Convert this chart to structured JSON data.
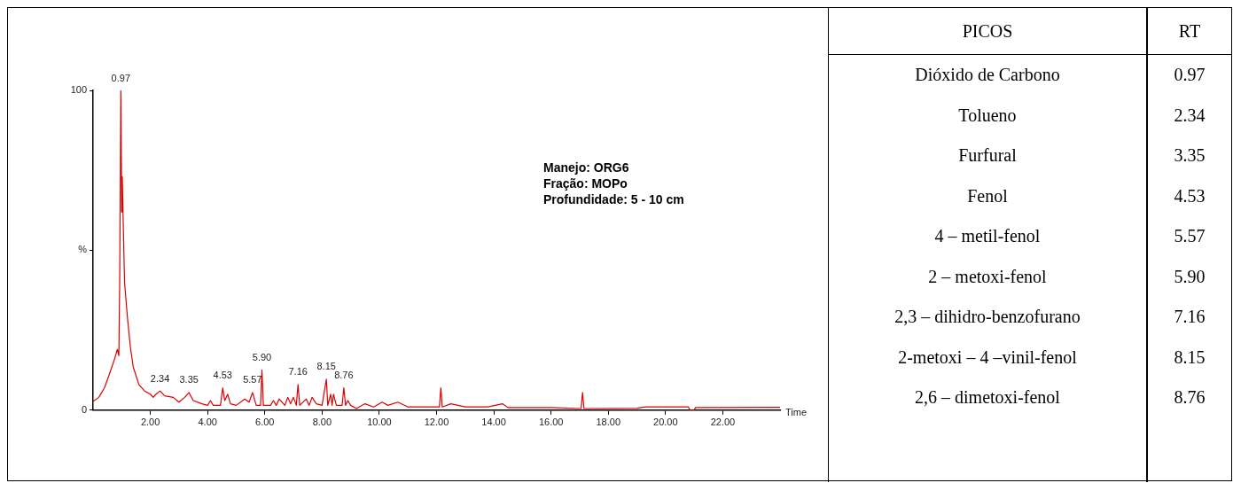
{
  "chart_data": [
    {
      "type": "line",
      "xlabel": "Time",
      "x": [
        0,
        0.2,
        0.4,
        0.6,
        0.75,
        0.85,
        0.9,
        0.93,
        0.97,
        1.0,
        1.02,
        1.05,
        1.1,
        1.2,
        1.3,
        1.4,
        1.6,
        1.8,
        2.0,
        2.1,
        2.2,
        2.34,
        2.5,
        2.8,
        3.0,
        3.2,
        3.35,
        3.5,
        3.8,
        4.0,
        4.1,
        4.2,
        4.45,
        4.53,
        4.6,
        4.7,
        4.8,
        5.0,
        5.3,
        5.45,
        5.57,
        5.7,
        5.85,
        5.9,
        5.95,
        6.2,
        6.3,
        6.4,
        6.5,
        6.7,
        6.8,
        6.9,
        7.0,
        7.1,
        7.16,
        7.22,
        7.45,
        7.55,
        7.65,
        7.8,
        8.0,
        8.15,
        8.2,
        8.3,
        8.35,
        8.4,
        8.5,
        8.7,
        8.76,
        8.82,
        8.9,
        9.0,
        9.2,
        9.5,
        9.8,
        10.1,
        10.3,
        10.65,
        11.0,
        11.5,
        12.1,
        12.15,
        12.2,
        12.5,
        13.0,
        13.8,
        14.3,
        14.5,
        16.0,
        17.05,
        17.1,
        17.15,
        19.0,
        19.3,
        20.8,
        20.85,
        21.0,
        21.05,
        24.0
      ],
      "series": [
        {
          "color": "#dd0000",
          "values": [
            2.7,
            4,
            7,
            12,
            16,
            19,
            17,
            40,
            100,
            62,
            73,
            60,
            40,
            29,
            20,
            13.6,
            8,
            6,
            5,
            4,
            5,
            6,
            4.5,
            4,
            2.5,
            4,
            5.5,
            3,
            2,
            1.5,
            3,
            1.5,
            1.5,
            7,
            3,
            5,
            2,
            1.5,
            3.5,
            2.5,
            5.5,
            1.5,
            1.5,
            12.5,
            1.5,
            1.5,
            3,
            1.5,
            3.5,
            1.5,
            4,
            2,
            4,
            1.5,
            8,
            1.5,
            3.5,
            1.5,
            4,
            2,
            1.5,
            9.7,
            1.5,
            5,
            1.5,
            5,
            1.5,
            1.5,
            7,
            1.5,
            3,
            1.5,
            0.5,
            2,
            1,
            2.5,
            1.5,
            2.5,
            1,
            1,
            1,
            7,
            1,
            2,
            1,
            1,
            2,
            0.8,
            0.8,
            0.5,
            5.5,
            0.5,
            0.6,
            1,
            1,
            0,
            0,
            0.8,
            0.9
          ]
        }
      ],
      "xlim": [
        0,
        24
      ],
      "xticks": [
        {
          "value": 2,
          "label": "2.00"
        },
        {
          "value": 4,
          "label": "4.00"
        },
        {
          "value": 6,
          "label": "6.00"
        },
        {
          "value": 8,
          "label": "8.00"
        },
        {
          "value": 10,
          "label": "10.00"
        },
        {
          "value": 12,
          "label": "12.00"
        },
        {
          "value": 14,
          "label": "14.00"
        },
        {
          "value": 16,
          "label": "16.00"
        },
        {
          "value": 18,
          "label": "18.00"
        },
        {
          "value": 20,
          "label": "20.00"
        },
        {
          "value": 22,
          "label": "22.00"
        }
      ],
      "ylim": [
        0,
        100
      ],
      "yticks": [
        0,
        {
          "value": 50,
          "label": "%"
        },
        100
      ],
      "grid": false,
      "legend": false,
      "marker": "none",
      "line_style": "solid",
      "annotations": [
        {
          "text": "0.97",
          "x": 0.97,
          "y": 100
        },
        {
          "text": "2.34",
          "x": 2.34,
          "y": 6
        },
        {
          "text": "3.35",
          "x": 3.35,
          "y": 5.5
        },
        {
          "text": "4.53",
          "x": 4.53,
          "y": 7
        },
        {
          "text": "5.57",
          "x": 5.57,
          "y": 5.5
        },
        {
          "text": "5.90",
          "x": 5.9,
          "y": 12.5
        },
        {
          "text": "7.16",
          "x": 7.16,
          "y": 8
        },
        {
          "text": "8.15",
          "x": 8.15,
          "y": 9.7
        },
        {
          "text": "8.76",
          "x": 8.76,
          "y": 7
        },
        "Manejo: ORG6",
        "Fração: MOPo",
        "Profundidade: 5 - 10 cm"
      ]
    },
    {
      "type": "other",
      "xlabel": "PICOS",
      "ylabel": "RT",
      "categories": [
        "Dióxido de Carbono",
        "Tolueno",
        "Furfural",
        "Fenol",
        "4 – metil-fenol",
        "2 – metoxi-fenol",
        "2,3 – dihidro-benzofurano",
        "2-metoxi – 4 –vinil-fenol",
        "2,6 – dimetoxi-fenol"
      ],
      "value_labels": [
        "0.97",
        "2.34",
        "3.35",
        "4.53",
        "5.57",
        "5.90",
        "7.16",
        "8.15",
        "8.76"
      ]
    }
  ]
}
